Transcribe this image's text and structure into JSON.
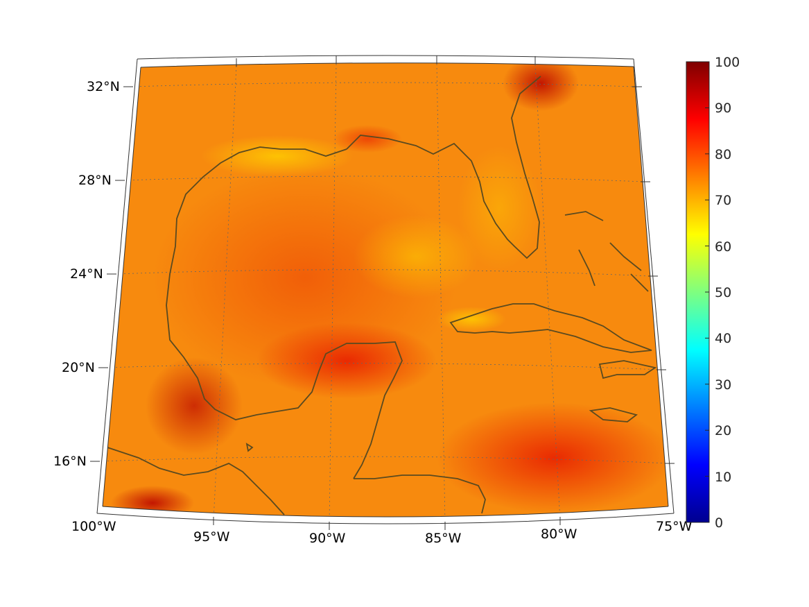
{
  "map": {
    "type": "heatmap",
    "projection": "conic",
    "lon_range": [
      -100,
      -75
    ],
    "lat_range": [
      14,
      33
    ],
    "latitude_labels": [
      "32°N",
      "28°N",
      "24°N",
      "20°N",
      "16°N"
    ],
    "longitude_labels": [
      "100°W",
      "95°W",
      "90°W",
      "85°W",
      "80°W",
      "75°W"
    ],
    "coastline_color": "#5a4a20",
    "grid": "dotted"
  },
  "colorbar": {
    "colormap": "jet",
    "range": [
      0,
      100
    ],
    "tick_labels": [
      "100",
      "90",
      "80",
      "70",
      "60",
      "50",
      "40",
      "30",
      "20",
      "10",
      "0"
    ]
  },
  "chart_data": {
    "type": "heatmap",
    "title": "",
    "xlabel": "",
    "ylabel": "",
    "xlim": [
      -100,
      -75
    ],
    "ylim": [
      14,
      33
    ],
    "value_range": [
      0,
      100
    ],
    "dominant_range": [
      65,
      90
    ],
    "notable_regions": [
      {
        "lon": -93,
        "lat": 29.5,
        "value": 65
      },
      {
        "lon": -89.5,
        "lat": 21.7,
        "value": 85
      },
      {
        "lon": -95.5,
        "lat": 18.5,
        "value": 88
      },
      {
        "lon": -81,
        "lat": 32.3,
        "value": 88
      },
      {
        "lon": -98,
        "lat": 14.5,
        "value": 95
      },
      {
        "lon": -80,
        "lat": 16,
        "value": 84
      }
    ]
  }
}
